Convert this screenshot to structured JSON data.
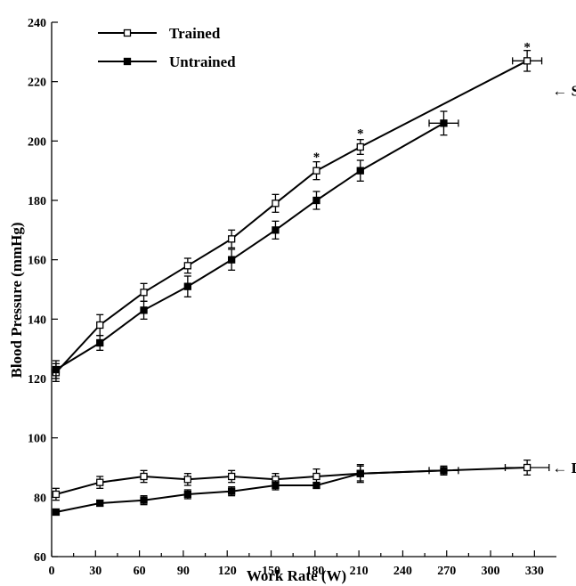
{
  "chart_data": {
    "type": "line",
    "xlabel": "Work Rate (W)",
    "ylabel": "Blood Pressure (mmHg)",
    "xlim": [
      0,
      345
    ],
    "ylim": [
      60,
      240
    ],
    "xticks": [
      0,
      30,
      60,
      90,
      120,
      150,
      180,
      210,
      240,
      270,
      300,
      330
    ],
    "yticks": [
      60,
      80,
      100,
      120,
      140,
      160,
      180,
      200,
      220,
      240
    ],
    "legend": {
      "position": "top-left"
    },
    "annotations": [
      {
        "text": "← SBP",
        "x": 330,
        "y": 217
      },
      {
        "text": "← DBP",
        "x": 330,
        "y": 90
      }
    ],
    "significance_marker": "*",
    "significance_points": [
      {
        "x": 181,
        "y": 195
      },
      {
        "x": 211,
        "y": 203
      },
      {
        "x": 325,
        "y": 232
      }
    ],
    "series": [
      {
        "name": "Trained",
        "marker": "open-square",
        "color": "#000000",
        "sbp": [
          {
            "x": 3,
            "y": 122,
            "yerr": 3,
            "xerr": 0
          },
          {
            "x": 33,
            "y": 138,
            "yerr": 3.5,
            "xerr": 0
          },
          {
            "x": 63,
            "y": 149,
            "yerr": 3,
            "xerr": 0
          },
          {
            "x": 93,
            "y": 158,
            "yerr": 2.5,
            "xerr": 0
          },
          {
            "x": 123,
            "y": 167,
            "yerr": 3,
            "xerr": 0
          },
          {
            "x": 153,
            "y": 179,
            "yerr": 3,
            "xerr": 0
          },
          {
            "x": 181,
            "y": 190,
            "yerr": 3,
            "xerr": 0
          },
          {
            "x": 211,
            "y": 198,
            "yerr": 2.5,
            "xerr": 0
          },
          {
            "x": 325,
            "y": 227,
            "yerr": 3.5,
            "xerr": 10
          }
        ],
        "dbp": [
          {
            "x": 3,
            "y": 81,
            "yerr": 2,
            "xerr": 0
          },
          {
            "x": 33,
            "y": 85,
            "yerr": 2,
            "xerr": 0
          },
          {
            "x": 63,
            "y": 87,
            "yerr": 2,
            "xerr": 0
          },
          {
            "x": 93,
            "y": 86,
            "yerr": 2,
            "xerr": 0
          },
          {
            "x": 123,
            "y": 87,
            "yerr": 2,
            "xerr": 0
          },
          {
            "x": 153,
            "y": 86,
            "yerr": 2,
            "xerr": 0
          },
          {
            "x": 181,
            "y": 87,
            "yerr": 2.5,
            "xerr": 0
          },
          {
            "x": 211,
            "y": 88,
            "yerr": 2.5,
            "xerr": 0
          },
          {
            "x": 325,
            "y": 90,
            "yerr": 2.5,
            "xerr": 15
          }
        ]
      },
      {
        "name": "Untrained",
        "marker": "filled-square",
        "color": "#000000",
        "sbp": [
          {
            "x": 3,
            "y": 123,
            "yerr": 3,
            "xerr": 0
          },
          {
            "x": 33,
            "y": 132,
            "yerr": 2.5,
            "xerr": 0
          },
          {
            "x": 63,
            "y": 143,
            "yerr": 3,
            "xerr": 0
          },
          {
            "x": 93,
            "y": 151,
            "yerr": 3.5,
            "xerr": 0
          },
          {
            "x": 123,
            "y": 160,
            "yerr": 3.5,
            "xerr": 0
          },
          {
            "x": 153,
            "y": 170,
            "yerr": 3,
            "xerr": 0
          },
          {
            "x": 181,
            "y": 180,
            "yerr": 3,
            "xerr": 0
          },
          {
            "x": 211,
            "y": 190,
            "yerr": 3.5,
            "xerr": 0
          },
          {
            "x": 268,
            "y": 206,
            "yerr": 4,
            "xerr": 10
          }
        ],
        "dbp": [
          {
            "x": 3,
            "y": 75,
            "yerr": 1,
            "xerr": 0
          },
          {
            "x": 33,
            "y": 78,
            "yerr": 1,
            "xerr": 0
          },
          {
            "x": 63,
            "y": 79,
            "yerr": 1.5,
            "xerr": 0
          },
          {
            "x": 93,
            "y": 81,
            "yerr": 1.5,
            "xerr": 0
          },
          {
            "x": 123,
            "y": 82,
            "yerr": 1.5,
            "xerr": 0
          },
          {
            "x": 153,
            "y": 84,
            "yerr": 1.5,
            "xerr": 0
          },
          {
            "x": 181,
            "y": 84,
            "yerr": 1,
            "xerr": 0
          },
          {
            "x": 211,
            "y": 88,
            "yerr": 3,
            "xerr": 0
          },
          {
            "x": 268,
            "y": 89,
            "yerr": 1.5,
            "xerr": 10
          }
        ]
      }
    ]
  }
}
